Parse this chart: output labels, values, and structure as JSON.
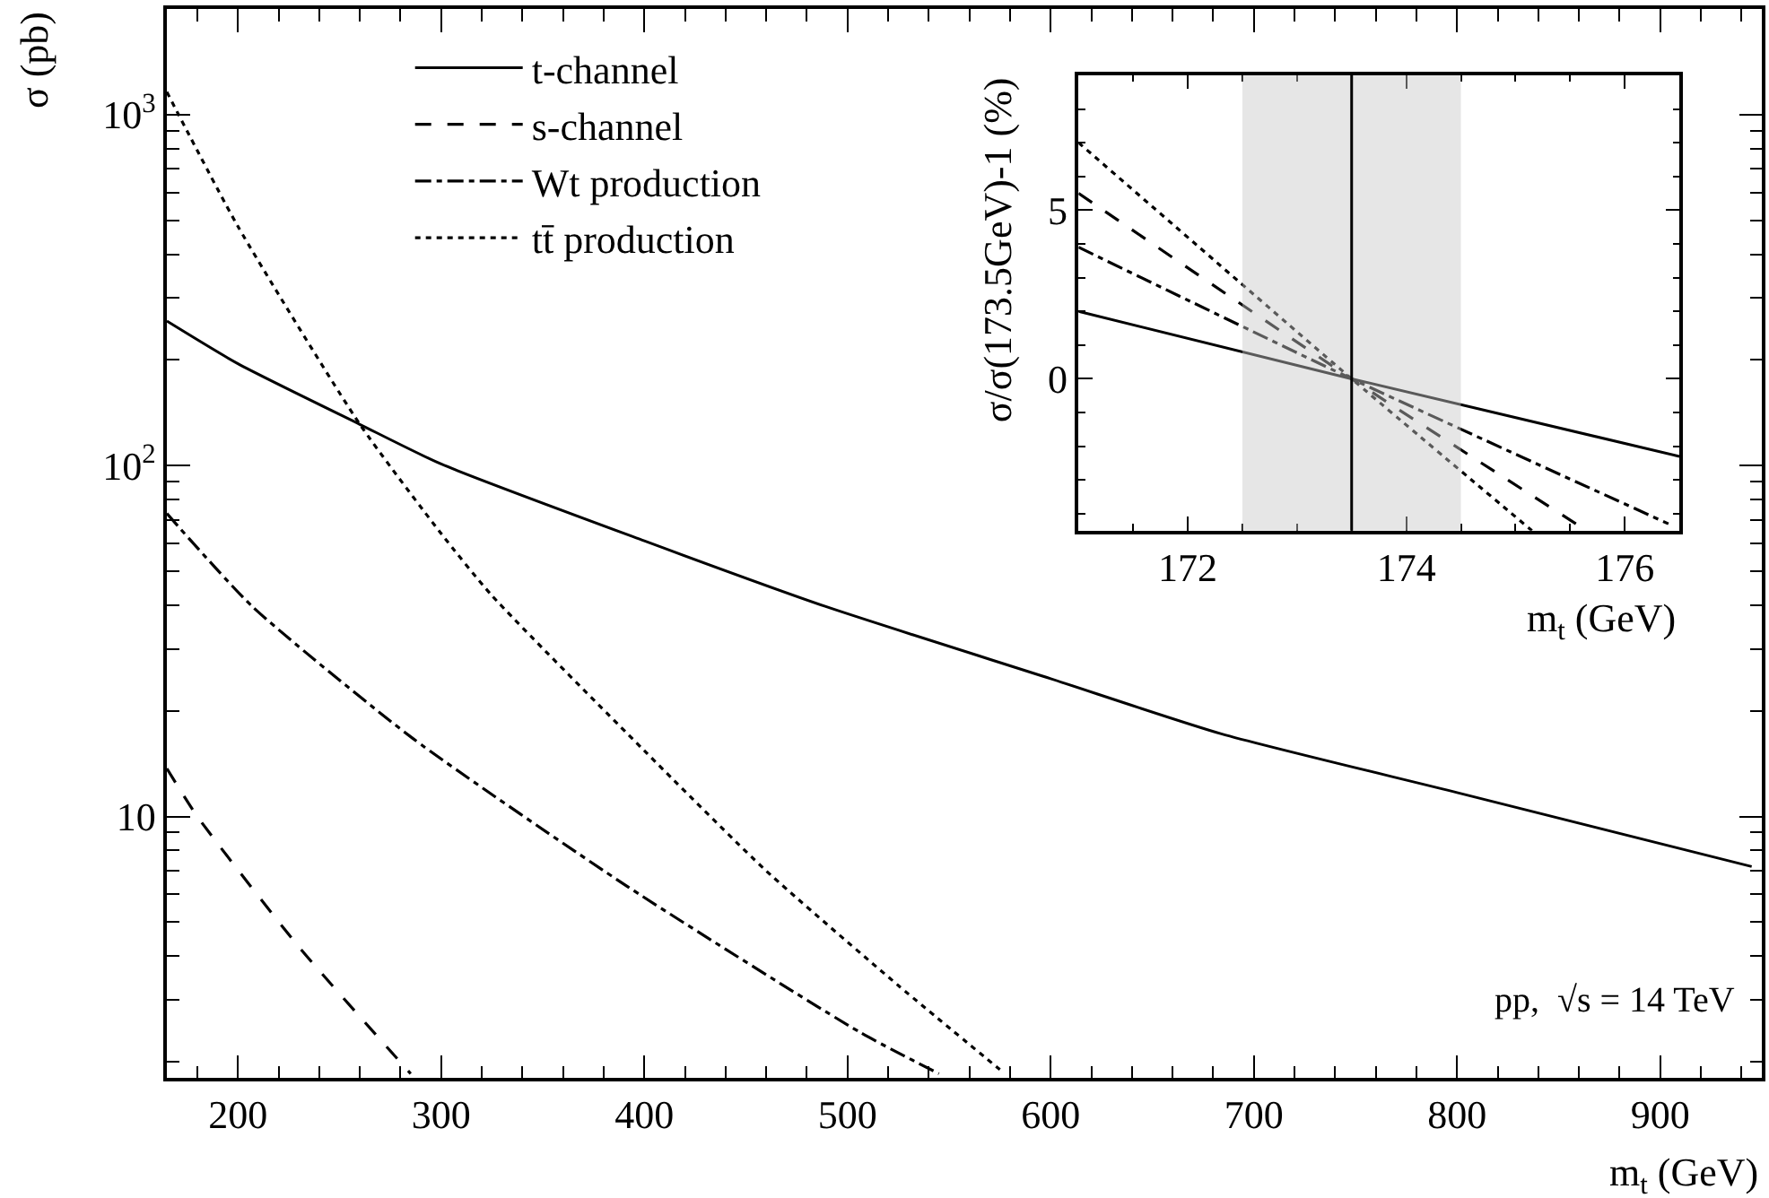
{
  "chart_data": [
    {
      "type": "line",
      "xlabel": "m$_{t}$ (GeV)",
      "ylabel": "σ (pb)",
      "xlim": [
        165,
        950
      ],
      "xticks": [
        200,
        300,
        400,
        500,
        600,
        700,
        800,
        900
      ],
      "ylim": [
        1.8,
        2000
      ],
      "yticks": [
        10,
        {
          "value": 100,
          "label": "10$^{2}$"
        },
        {
          "value": 1000,
          "label": "10$^{3}$"
        }
      ],
      "log": "y",
      "legend": "top left",
      "marker": "none",
      "series": [
        {
          "name": "t-channel",
          "color": "#000000",
          "line_style": "solid",
          "x": [
            165,
            200,
            260,
            300,
            400,
            489,
            600,
            684,
            800,
            945
          ],
          "values": [
            258,
            195,
            131,
            101,
            61,
            39.7,
            24.7,
            17.2,
            11.7,
            7.2
          ]
        },
        {
          "name": "s-channel",
          "color": "#000000",
          "line_style": "dashed",
          "x": [
            165,
            180,
            230,
            285
          ],
          "values": [
            13.7,
            10,
            4.25,
            1.85
          ]
        },
        {
          "name": "Wt production",
          "color": "#000000",
          "line_style": "dashdot",
          "x": [
            165,
            207,
            286,
            392,
            506,
            545
          ],
          "values": [
            73,
            39.7,
            16.7,
            6.3,
            2.43,
            1.85
          ]
        },
        {
          "name": "tt̄ production",
          "color": "#000000",
          "line_style": "dotted",
          "x": [
            165,
            200,
            260,
            300,
            325,
            400,
            460,
            525,
            575
          ],
          "values": [
            1160,
            480,
            131,
            64,
            42.6,
            15.4,
            7.0,
            3.3,
            1.9
          ]
        }
      ],
      "annotations": [
        "pp,  √s = 14 TeV"
      ]
    },
    {
      "type": "line",
      "xlabel": "m$_{t}$ (GeV)",
      "ylabel": "σ/σ(173.5GeV)-1 (%)",
      "xlim": [
        171,
        176.5
      ],
      "xticks": [
        172,
        174,
        176
      ],
      "ylim": [
        -4.5,
        9
      ],
      "yticks": [
        0,
        5
      ],
      "legend": false,
      "marker": "none",
      "bands": [
        {
          "axis": "x",
          "from": 172.5,
          "to": 174.5,
          "color": "#c8c8c8"
        }
      ],
      "ref_lines": [
        {
          "axis": "x",
          "value": 173.5,
          "color": "#000000",
          "line_style": "solid"
        }
      ],
      "series": [
        {
          "color": "#000000",
          "line_style": "solid",
          "x": [
            171,
            173.5,
            176.5
          ],
          "values": [
            2.0,
            0,
            -2.3
          ]
        },
        {
          "color": "#000000",
          "line_style": "dashed",
          "x": [
            171,
            173.5,
            175.65
          ],
          "values": [
            5.5,
            0,
            -4.5
          ]
        },
        {
          "color": "#000000",
          "line_style": "dashdot",
          "x": [
            171,
            173.5,
            176.4
          ],
          "values": [
            3.9,
            0,
            -4.3
          ]
        },
        {
          "color": "#000000",
          "line_style": "dotted",
          "x": [
            171,
            173.5,
            175.15
          ],
          "values": [
            7.0,
            0,
            -4.5
          ]
        }
      ]
    }
  ]
}
